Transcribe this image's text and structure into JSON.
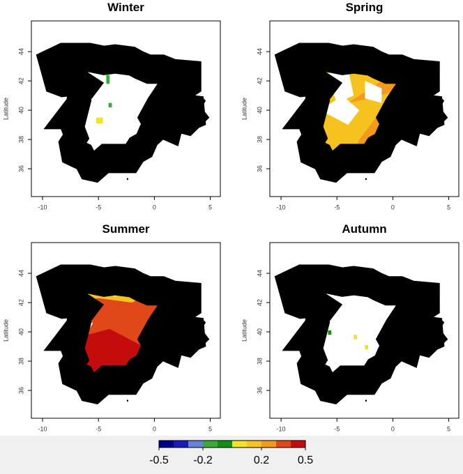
{
  "panels": [
    {
      "title": "Winter"
    },
    {
      "title": "Spring"
    },
    {
      "title": "Summer"
    },
    {
      "title": "Autumn"
    }
  ],
  "x_axis": {
    "xlim": [
      -11,
      5.9
    ],
    "ticks": [
      -10,
      -5,
      0,
      5
    ]
  },
  "y_axis": {
    "label": "Latitude",
    "ylim": [
      34.1,
      46.1
    ],
    "ticks": [
      36,
      38,
      40,
      42,
      44
    ]
  },
  "colorbar": {
    "range": [
      -0.5,
      0.5
    ],
    "ticks": [
      -0.5,
      -0.2,
      0.2,
      0.5
    ],
    "colors": [
      "#00008b",
      "#1a1ab8",
      "#6a82d6",
      "#3aa83a",
      "#138f13",
      "#f2e424",
      "#f6c21e",
      "#f29a1e",
      "#e0481a",
      "#c40c0c"
    ]
  }
}
